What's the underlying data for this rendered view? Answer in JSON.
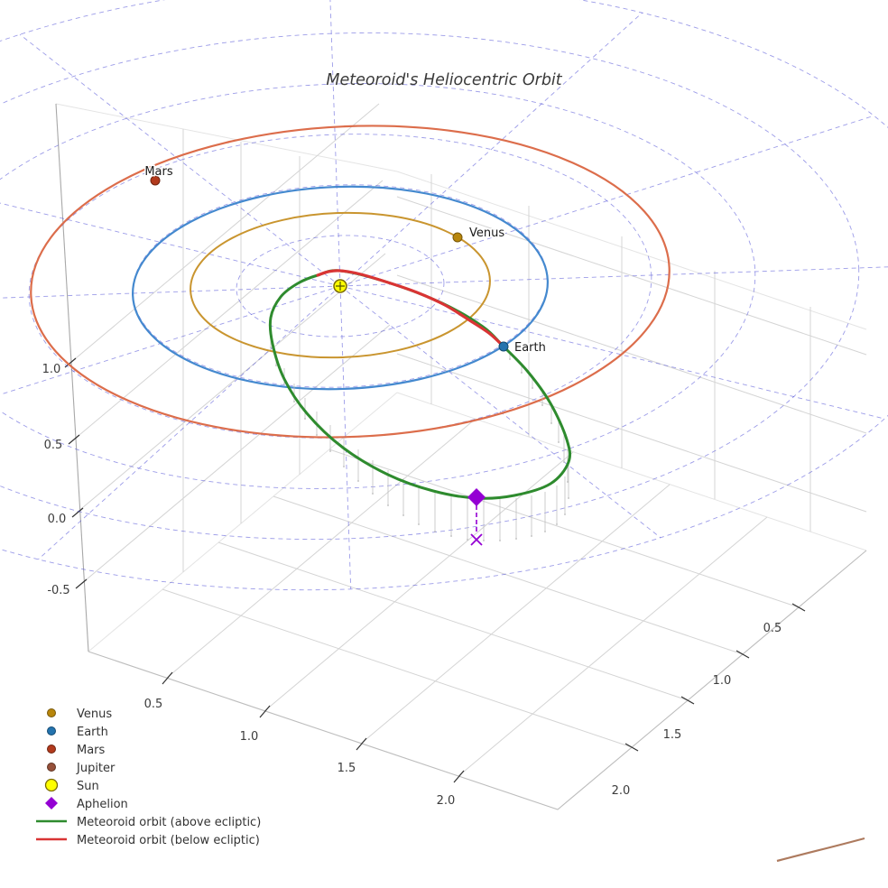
{
  "title": "Meteoroid's Heliocentric Orbit",
  "colors": {
    "polar_grid": "#4b4bd6",
    "pane_grid": "#d4d4d4",
    "pane_edge": "#bdbdbd",
    "axis_line": "#a8a8a8",
    "tick_mark": "#333333",
    "venus_orbit": "#c9952f",
    "venus_dot": "#b8860b",
    "earth_orbit": "#4489cf",
    "earth_dot": "#2473ae",
    "mars_orbit": "#dc6d4b",
    "mars_dot": "#b23a1d",
    "jupiter_orbit": "#ad7a5e",
    "jupiter_dot": "#96503a",
    "sun_fill": "#ffff00",
    "sun_edge": "#7a6a00",
    "aphelion": "#9400d3",
    "meteoroid_above": "#2e8b2e",
    "meteoroid_below": "#d93434",
    "stem": "#b9b9b9"
  },
  "chart_data": {
    "type": "line",
    "projection": "3d",
    "title": "Meteoroid's Heliocentric Orbit",
    "axes": {
      "x_ticks": [
        "0.5",
        "1.0",
        "1.5",
        "2.0"
      ],
      "y_ticks": [
        "0.5",
        "1.0",
        "1.5",
        "2.0"
      ],
      "z_ticks": [
        "1.0",
        "0.5",
        "0.0",
        "-0.5"
      ]
    },
    "polar_grid": {
      "rings_au": [
        0.5,
        1.0,
        1.5,
        2.0,
        2.5,
        3.0
      ],
      "radial_spacing_deg": 30,
      "style": "dashed-blue"
    },
    "bodies": [
      {
        "name": "Sun",
        "position_au": [
          0,
          0,
          0
        ]
      },
      {
        "name": "Venus",
        "orbit_radius_au": 0.72
      },
      {
        "name": "Earth",
        "orbit_radius_au": 1.0
      },
      {
        "name": "Mars",
        "orbit_radius_au": 1.52
      },
      {
        "name": "Jupiter"
      }
    ],
    "labels": {
      "mars": "Mars",
      "venus": "Venus",
      "earth": "Earth"
    },
    "annotations": [
      {
        "label": "Aphelion",
        "marker": "diamond",
        "dropline": "dashed",
        "ecliptic_projection_marker": "x"
      }
    ],
    "legend": [
      {
        "label": "Venus",
        "marker": "dot"
      },
      {
        "label": "Earth",
        "marker": "dot"
      },
      {
        "label": "Mars",
        "marker": "dot"
      },
      {
        "label": "Jupiter",
        "marker": "dot"
      },
      {
        "label": "Sun",
        "marker": "circle"
      },
      {
        "label": "Aphelion",
        "marker": "diamond"
      },
      {
        "label": "Meteoroid orbit (above ecliptic)",
        "marker": "line"
      },
      {
        "label": "Meteoroid orbit (below ecliptic)",
        "marker": "line"
      }
    ]
  }
}
